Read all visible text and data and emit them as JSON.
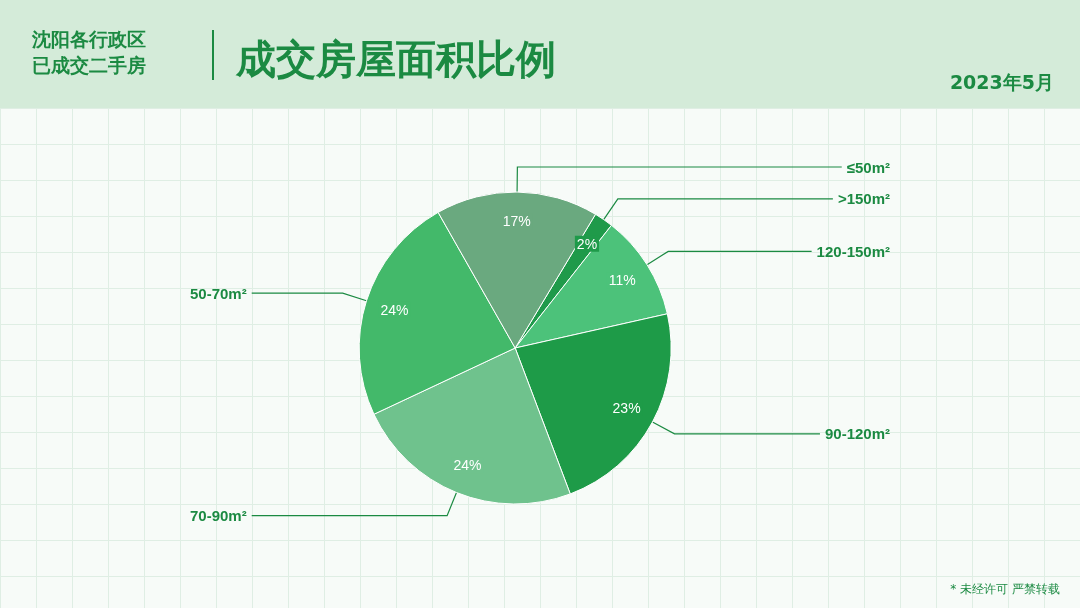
{
  "chart_data": {
    "type": "pie",
    "title": "成交房屋面积比例",
    "subtitle": "沈阳各行政区已成交二手房",
    "categories": [
      ">150m²",
      "120-150m²",
      "90-120m²",
      "70-90m²",
      "50-70m²",
      "≤50m²"
    ],
    "values": [
      2,
      11,
      23,
      24,
      24,
      17
    ],
    "value_labels": [
      "2%",
      "11%",
      "23%",
      "24%",
      "24%",
      "17%"
    ],
    "colors": [
      "#1f9a4a",
      "#4cc27a",
      "#1e9b48",
      "#6fc28d",
      "#43b96a",
      "#6aa97f"
    ],
    "annotations": [
      "2023年5月",
      "* 未经许可 严禁转载"
    ],
    "legend": false
  }
}
